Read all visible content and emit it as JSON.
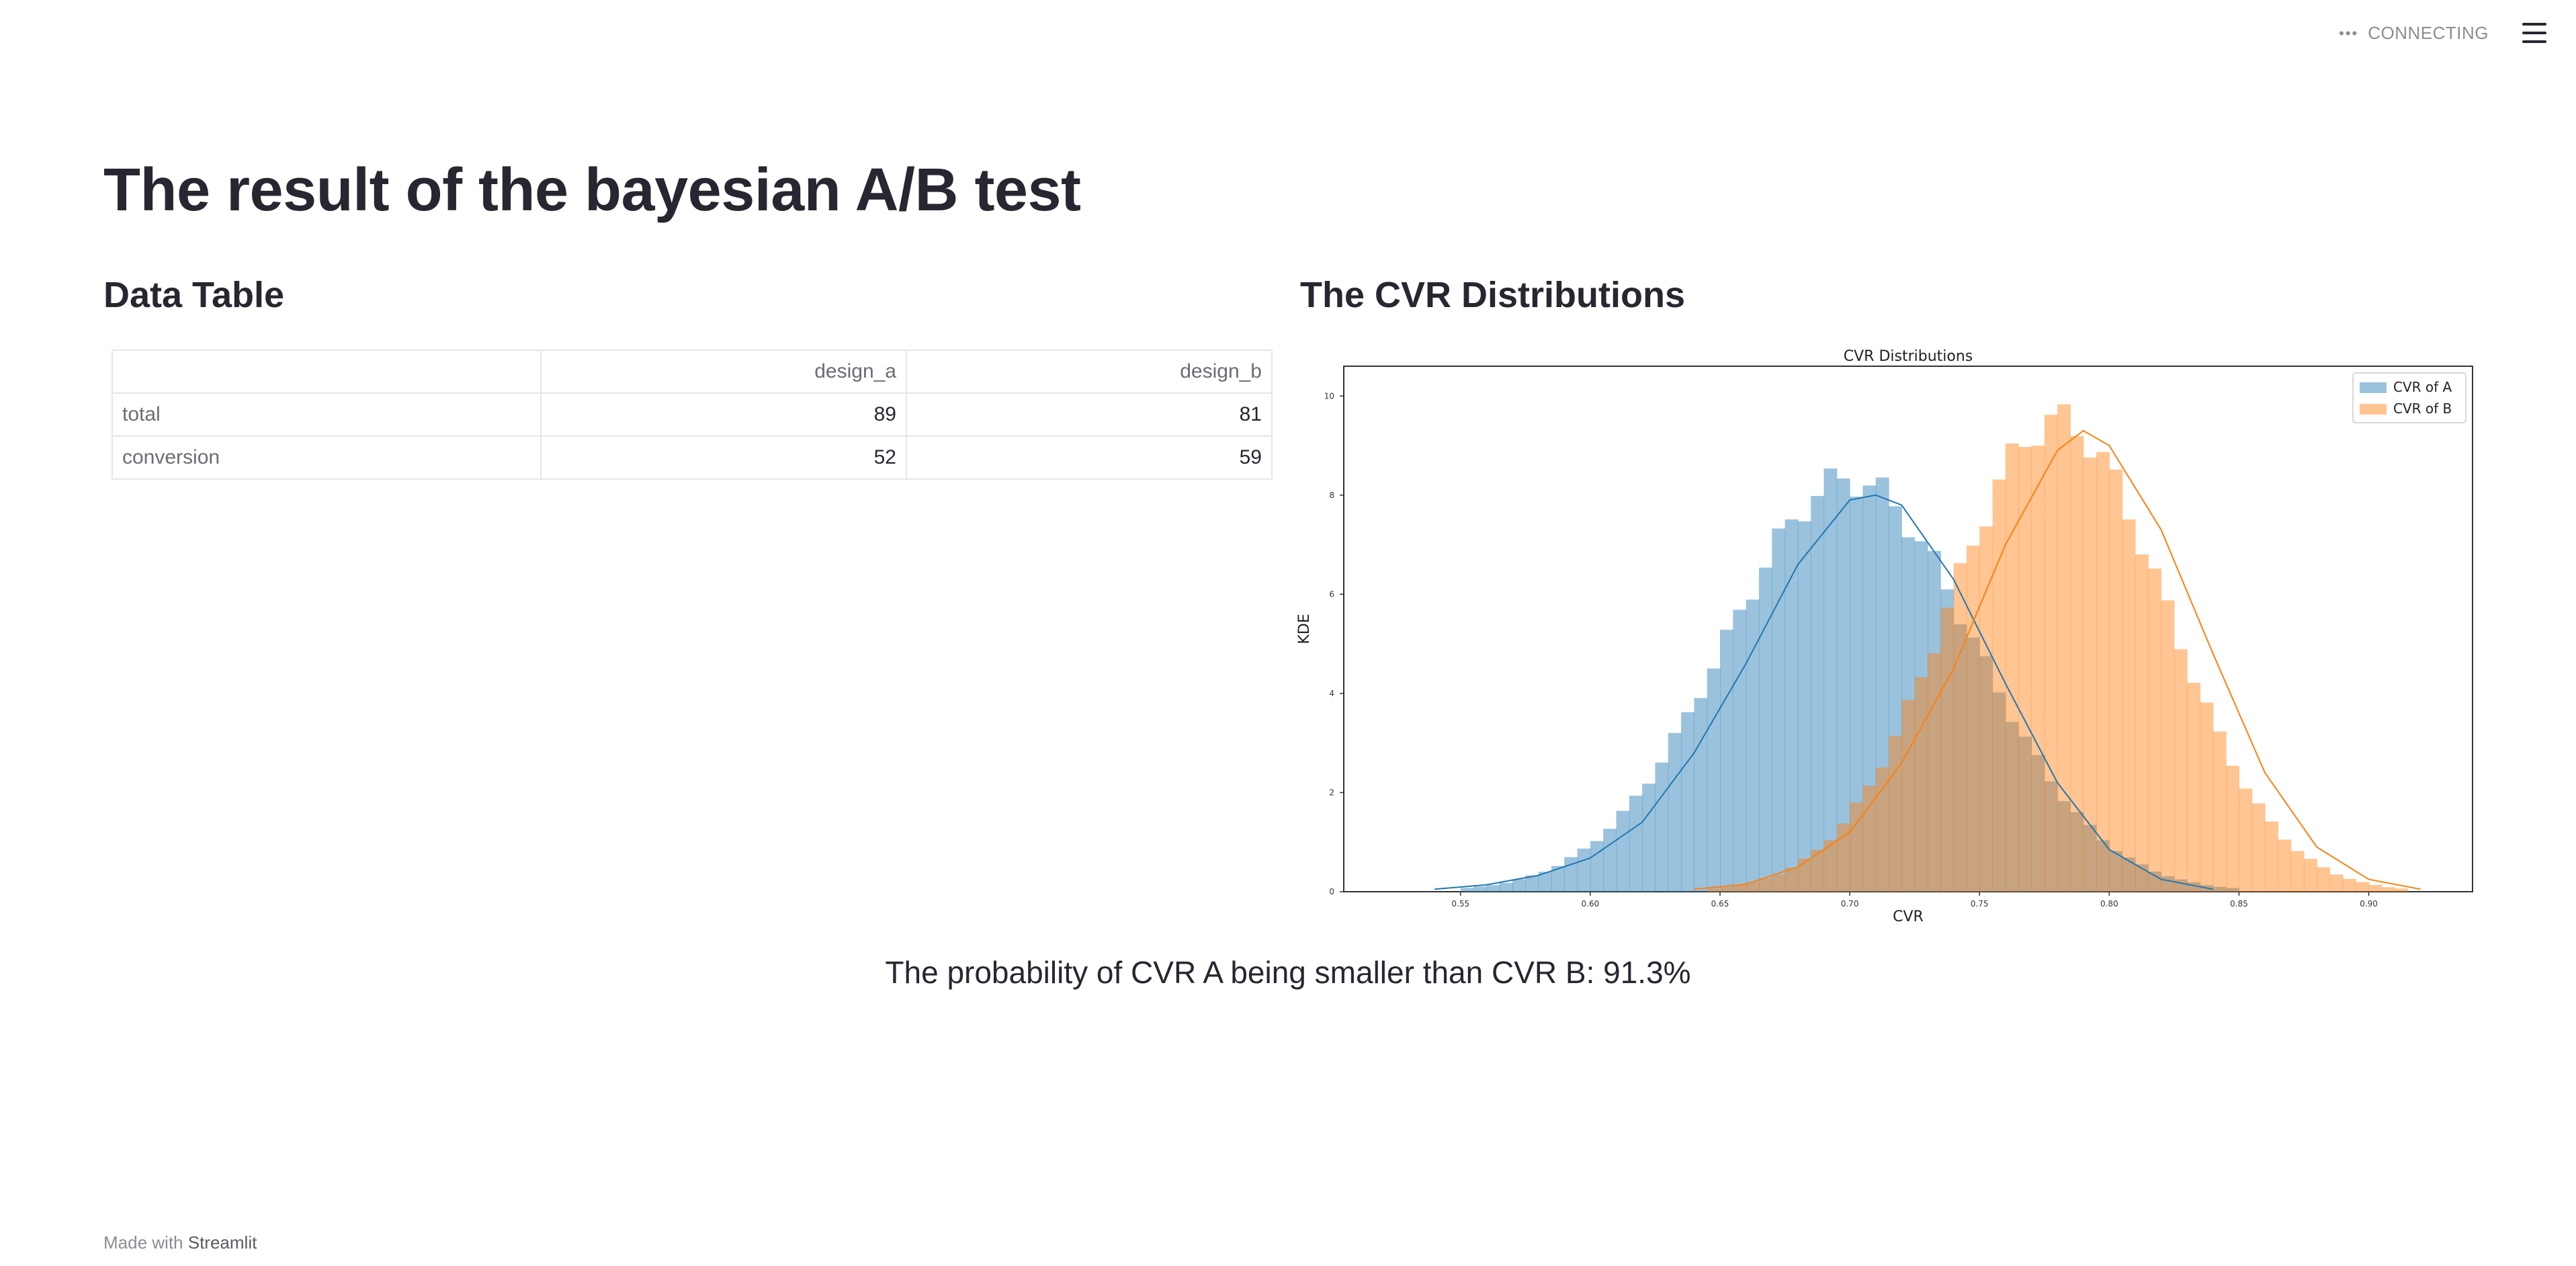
{
  "header": {
    "status_text": "CONNECTING",
    "status_icon": "ellipsis-icon",
    "menu_icon": "hamburger-icon"
  },
  "page": {
    "title": "The result of the bayesian A/B test"
  },
  "sections": {
    "left_title": "Data Table",
    "right_title": "The CVR Distributions"
  },
  "table": {
    "columns": [
      "",
      "design_a",
      "design_b"
    ],
    "rows": [
      {
        "label": "total",
        "design_a": "89",
        "design_b": "81"
      },
      {
        "label": "conversion",
        "design_a": "52",
        "design_b": "59"
      }
    ]
  },
  "chart_data": {
    "type": "area",
    "title": "CVR Distributions",
    "xlabel": "CVR",
    "ylabel": "KDE",
    "xlim": [
      0.505,
      0.94
    ],
    "ylim": [
      0,
      10.6
    ],
    "xticks": [
      "0.55",
      "0.60",
      "0.65",
      "0.70",
      "0.75",
      "0.80",
      "0.85",
      "0.90"
    ],
    "yticks": [
      "0",
      "2",
      "4",
      "6",
      "8",
      "10"
    ],
    "legend_position": "top-right",
    "series": [
      {
        "name": "CVR of A",
        "color": "#1f77b4",
        "mean": 0.7,
        "sd": 0.048,
        "x": [
          0.54,
          0.56,
          0.58,
          0.6,
          0.62,
          0.64,
          0.66,
          0.68,
          0.7,
          0.71,
          0.72,
          0.74,
          0.76,
          0.78,
          0.8,
          0.82,
          0.84
        ],
        "kde": [
          0.05,
          0.14,
          0.33,
          0.68,
          1.4,
          2.8,
          4.6,
          6.6,
          7.9,
          8.0,
          7.8,
          6.3,
          4.2,
          2.2,
          0.85,
          0.25,
          0.05
        ]
      },
      {
        "name": "CVR of B",
        "color": "#ff7f0e",
        "mean": 0.78,
        "sd": 0.042,
        "x": [
          0.64,
          0.66,
          0.68,
          0.7,
          0.72,
          0.74,
          0.76,
          0.78,
          0.79,
          0.8,
          0.82,
          0.84,
          0.86,
          0.88,
          0.9,
          0.92
        ],
        "kde": [
          0.05,
          0.15,
          0.5,
          1.2,
          2.6,
          4.5,
          7.0,
          8.9,
          9.3,
          9.0,
          7.3,
          4.8,
          2.4,
          0.9,
          0.25,
          0.05
        ]
      }
    ]
  },
  "result": {
    "text": "The probability of CVR A being smaller than CVR B: 91.3%"
  },
  "footer": {
    "prefix": "Made with",
    "brand": "Streamlit"
  }
}
